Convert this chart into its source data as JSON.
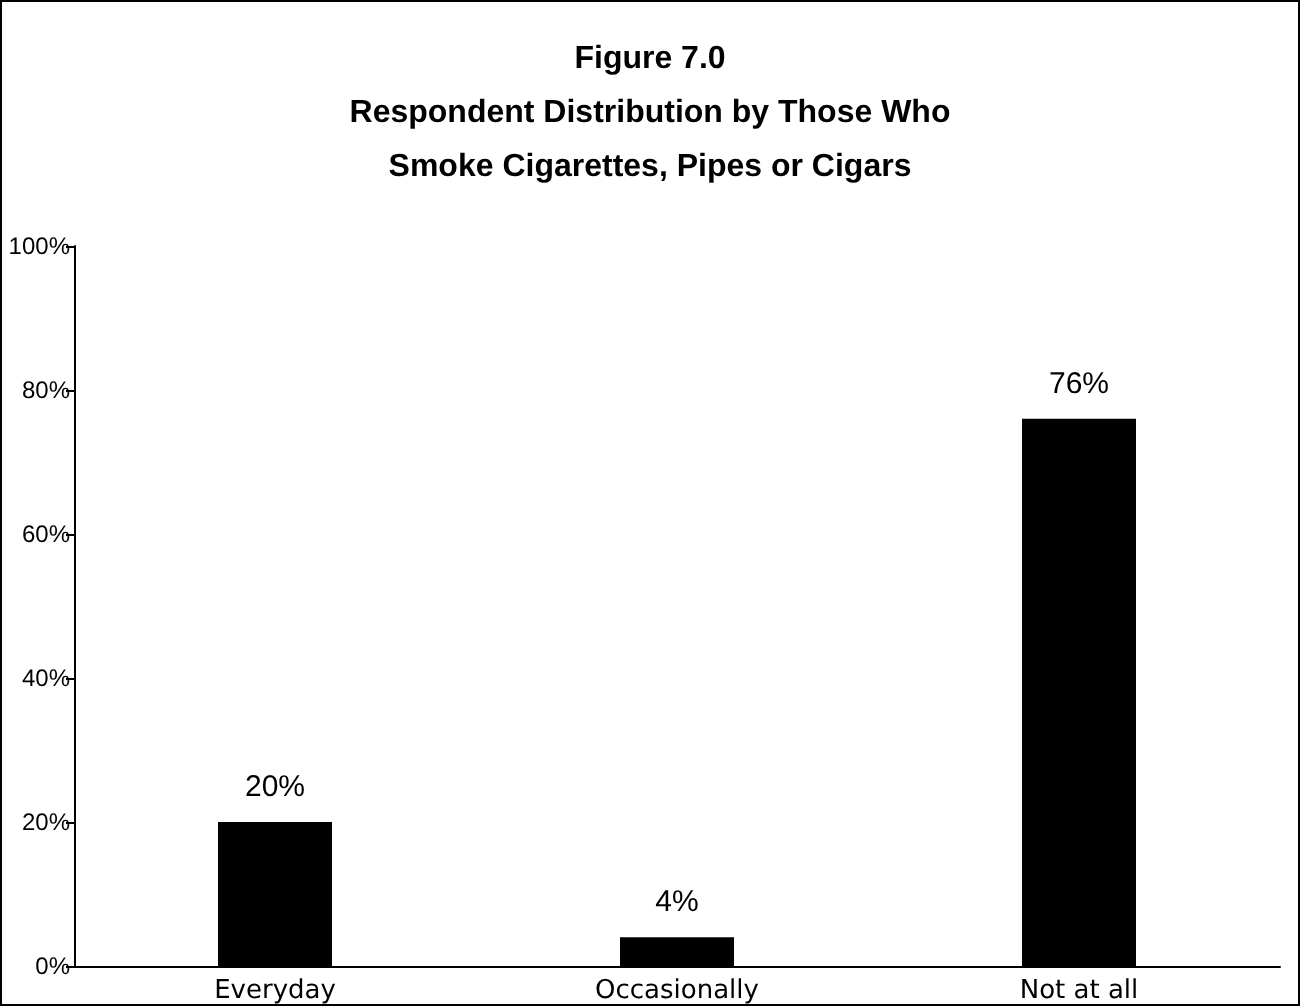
{
  "chart_data": {
    "type": "bar",
    "title": "Figure 7.0\nRespondent Distribution by Those Who\nSmoke Cigarettes, Pipes or Cigars",
    "categories": [
      "Everyday",
      "Occasionally",
      "Not at all"
    ],
    "values": [
      20,
      4,
      76
    ],
    "color": "#000000",
    "value_labels": [
      "20%",
      "4%",
      "76%"
    ],
    "ylim": [
      0,
      100
    ],
    "yticks": [
      {
        "value": 0,
        "label": "0%"
      },
      {
        "value": 20,
        "label": "20%"
      },
      {
        "value": 40,
        "label": "40%"
      },
      {
        "value": 60,
        "label": "60%"
      },
      {
        "value": 80,
        "label": "80%"
      },
      {
        "value": 100,
        "label": "100%"
      }
    ],
    "grid": false,
    "legend": false
  }
}
